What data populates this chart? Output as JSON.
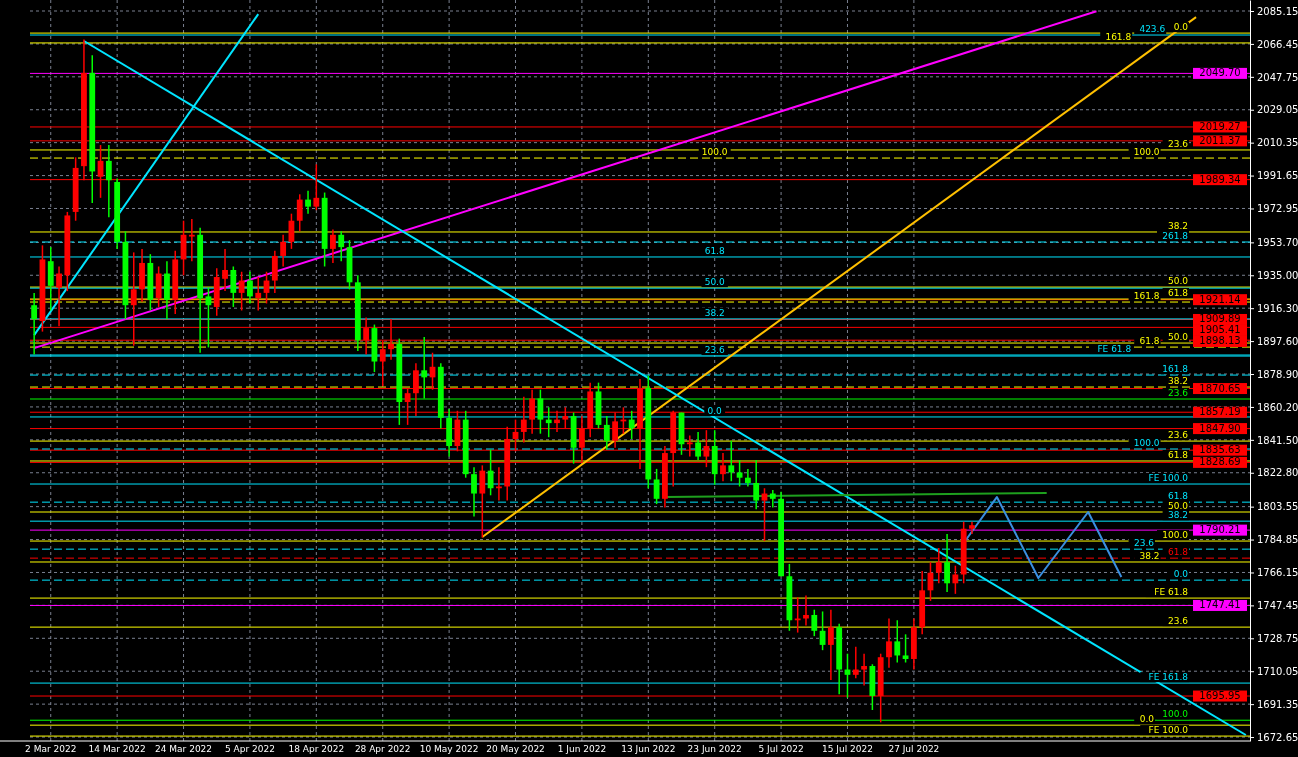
{
  "chart_data": {
    "type": "candlestick",
    "categories": [
      null,
      null,
      "2 Mar 2022",
      null,
      null,
      null,
      null,
      null,
      null,
      null,
      "14 Mar 2022",
      null,
      null,
      null,
      null,
      null,
      null,
      null,
      "24 Mar 2022",
      null,
      null,
      null,
      null,
      null,
      null,
      null,
      "5 Apr 2022",
      null,
      null,
      null,
      null,
      null,
      null,
      null,
      "18 Apr 2022",
      null,
      null,
      null,
      null,
      null,
      null,
      null,
      "28 Apr 2022",
      null,
      null,
      null,
      null,
      null,
      null,
      null,
      "10 May 2022",
      null,
      null,
      null,
      null,
      null,
      null,
      null,
      "20 May 2022",
      null,
      null,
      null,
      null,
      null,
      null,
      null,
      "1 Jun 2022",
      null,
      null,
      null,
      null,
      null,
      null,
      null,
      "13 Jun 2022",
      null,
      null,
      null,
      null,
      null,
      null,
      null,
      "23 Jun 2022",
      null,
      null,
      null,
      null,
      null,
      null,
      null,
      "5 Jul 2022",
      null,
      null,
      null,
      null,
      null,
      null,
      null,
      "15 Jul 2022",
      null,
      null,
      null,
      null,
      null,
      null,
      null,
      "27 Jul 2022",
      null,
      null,
      null,
      null,
      null,
      null,
      null,
      null,
      null,
      null,
      null,
      null,
      null,
      null,
      null,
      null,
      null,
      null,
      null,
      null,
      null,
      null,
      null,
      null,
      null,
      null,
      null,
      null,
      null,
      null,
      null,
      null,
      null,
      null,
      null,
      null,
      null,
      null,
      null,
      null
    ],
    "ohlc": [
      [
        1918,
        1925,
        1890,
        1910
      ],
      [
        1909,
        1952,
        1903,
        1944
      ],
      [
        1943,
        1951,
        1915,
        1929
      ],
      [
        1928,
        1940,
        1906,
        1936
      ],
      [
        1935,
        1971,
        1926,
        1969
      ],
      [
        1971,
        2002,
        1966,
        1996
      ],
      [
        1997,
        2069,
        1989,
        2050
      ],
      [
        2050,
        2060,
        1976,
        1994
      ],
      [
        1991,
        2009,
        1979,
        2000
      ],
      [
        2000,
        2009,
        1968,
        1989
      ],
      [
        1988,
        1990,
        1950,
        1954
      ],
      [
        1954,
        1960,
        1910,
        1918
      ],
      [
        1918,
        1948,
        1895,
        1927
      ],
      [
        1927,
        1950,
        1920,
        1942
      ],
      [
        1942,
        1947,
        1915,
        1921
      ],
      [
        1922,
        1940,
        1917,
        1936
      ],
      [
        1936,
        1943,
        1910,
        1921
      ],
      [
        1921,
        1949,
        1913,
        1944
      ],
      [
        1944,
        1966,
        1935,
        1958
      ],
      [
        1957,
        1967,
        1943,
        1958
      ],
      [
        1958,
        1962,
        1891,
        1922
      ],
      [
        1923,
        1928,
        1894,
        1918
      ],
      [
        1917,
        1939,
        1912,
        1934
      ],
      [
        1933,
        1950,
        1926,
        1938
      ],
      [
        1938,
        1940,
        1917,
        1925
      ],
      [
        1925,
        1937,
        1915,
        1932
      ],
      [
        1932,
        1937,
        1919,
        1923
      ],
      [
        1922,
        1934,
        1915,
        1925
      ],
      [
        1925,
        1937,
        1919,
        1932
      ],
      [
        1932,
        1949,
        1925,
        1946
      ],
      [
        1946,
        1958,
        1940,
        1954
      ],
      [
        1954,
        1970,
        1950,
        1966
      ],
      [
        1966,
        1981,
        1960,
        1978
      ],
      [
        1978,
        1983,
        1970,
        1974
      ],
      [
        1974,
        1998,
        1972,
        1979
      ],
      [
        1979,
        1982,
        1940,
        1950
      ],
      [
        1950,
        1961,
        1942,
        1958
      ],
      [
        1958,
        1960,
        1943,
        1951
      ],
      [
        1951,
        1955,
        1927,
        1931
      ],
      [
        1931,
        1935,
        1892,
        1898
      ],
      [
        1898,
        1911,
        1890,
        1905
      ],
      [
        1905,
        1907,
        1880,
        1886
      ],
      [
        1886,
        1898,
        1872,
        1893
      ],
      [
        1893,
        1910,
        1887,
        1896
      ],
      [
        1896,
        1899,
        1850,
        1863
      ],
      [
        1863,
        1871,
        1850,
        1868
      ],
      [
        1868,
        1885,
        1855,
        1881
      ],
      [
        1881,
        1900,
        1865,
        1877
      ],
      [
        1877,
        1891,
        1870,
        1883
      ],
      [
        1883,
        1885,
        1848,
        1854
      ],
      [
        1854,
        1859,
        1832,
        1838
      ],
      [
        1838,
        1858,
        1835,
        1853
      ],
      [
        1853,
        1858,
        1820,
        1822
      ],
      [
        1822,
        1826,
        1798,
        1811
      ],
      [
        1811,
        1827,
        1786,
        1824
      ],
      [
        1824,
        1836,
        1810,
        1814
      ],
      [
        1814,
        1826,
        1807,
        1815
      ],
      [
        1815,
        1849,
        1807,
        1842
      ],
      [
        1842,
        1853,
        1835,
        1846
      ],
      [
        1846,
        1866,
        1840,
        1853
      ],
      [
        1853,
        1870,
        1845,
        1865
      ],
      [
        1865,
        1870,
        1845,
        1853
      ],
      [
        1853,
        1860,
        1843,
        1851
      ],
      [
        1851,
        1858,
        1846,
        1853
      ],
      [
        1853,
        1860,
        1848,
        1855
      ],
      [
        1855,
        1857,
        1828,
        1837
      ],
      [
        1837,
        1855,
        1829,
        1848
      ],
      [
        1848,
        1874,
        1843,
        1869
      ],
      [
        1869,
        1874,
        1848,
        1850
      ],
      [
        1850,
        1855,
        1836,
        1841
      ],
      [
        1841,
        1857,
        1837,
        1852
      ],
      [
        1852,
        1860,
        1845,
        1853
      ],
      [
        1853,
        1858,
        1842,
        1848
      ],
      [
        1848,
        1876,
        1825,
        1871
      ],
      [
        1871,
        1878,
        1814,
        1819
      ],
      [
        1819,
        1825,
        1805,
        1808
      ],
      [
        1808,
        1838,
        1803,
        1834
      ],
      [
        1834,
        1858,
        1815,
        1857
      ],
      [
        1857,
        1857,
        1833,
        1839
      ],
      [
        1839,
        1844,
        1832,
        1840
      ],
      [
        1840,
        1846,
        1830,
        1832
      ],
      [
        1832,
        1847,
        1826,
        1838
      ],
      [
        1838,
        1847,
        1816,
        1822
      ],
      [
        1822,
        1834,
        1818,
        1827
      ],
      [
        1827,
        1841,
        1818,
        1823
      ],
      [
        1823,
        1830,
        1815,
        1820
      ],
      [
        1820,
        1825,
        1815,
        1817
      ],
      [
        1817,
        1830,
        1802,
        1807
      ],
      [
        1807,
        1814,
        1784,
        1811
      ],
      [
        1811,
        1813,
        1803,
        1808
      ],
      [
        1808,
        1812,
        1764,
        1764
      ],
      [
        1764,
        1771,
        1733,
        1739
      ],
      [
        1739,
        1752,
        1732,
        1740
      ],
      [
        1740,
        1753,
        1736,
        1742
      ],
      [
        1742,
        1745,
        1730,
        1733
      ],
      [
        1733,
        1744,
        1722,
        1725
      ],
      [
        1725,
        1745,
        1705,
        1735
      ],
      [
        1735,
        1737,
        1697,
        1711
      ],
      [
        1711,
        1720,
        1695,
        1708
      ],
      [
        1708,
        1724,
        1706,
        1711
      ],
      [
        1711,
        1720,
        1702,
        1713
      ],
      [
        1713,
        1714,
        1688,
        1696
      ],
      [
        1696,
        1720,
        1681,
        1718
      ],
      [
        1718,
        1740,
        1712,
        1727
      ],
      [
        1727,
        1739,
        1715,
        1719
      ],
      [
        1719,
        1731,
        1715,
        1717
      ],
      [
        1717,
        1740,
        1711,
        1735
      ],
      [
        1735,
        1767,
        1731,
        1756
      ],
      [
        1756,
        1772,
        1750,
        1766
      ],
      [
        1766,
        1780,
        1760,
        1772
      ],
      [
        1772,
        1788,
        1755,
        1760
      ],
      [
        1760,
        1770,
        1754,
        1765
      ],
      [
        1765,
        1795,
        1760,
        1791
      ],
      [
        1791,
        1795,
        1788,
        1793
      ],
      null,
      null,
      null,
      null,
      null,
      null,
      null,
      null,
      null,
      null,
      null,
      null,
      null,
      null,
      null,
      null,
      null,
      null,
      null,
      null,
      null,
      null,
      null,
      null,
      null,
      null,
      null,
      null,
      null,
      null,
      null,
      null,
      null
    ],
    "colors": [
      "#00ff00",
      "#ff0000",
      "#00ff00",
      "#ff0000",
      "#ff0000",
      "#ff0000",
      "#ff0000",
      "#00ff00",
      "#ff0000",
      "#00ff00",
      "#00ff00",
      "#00ff00",
      "#ff0000",
      "#ff0000",
      "#00ff00",
      "#ff0000",
      "#00ff00",
      "#ff0000",
      "#ff0000",
      "#ff0000",
      "#00ff00",
      "#00ff00",
      "#ff0000",
      "#ff0000",
      "#00ff00",
      "#ff0000",
      "#00ff00",
      "#ff0000",
      "#ff0000",
      "#ff0000",
      "#ff0000",
      "#ff0000",
      "#ff0000",
      "#00ff00",
      "#ff0000",
      "#00ff00",
      "#ff0000",
      "#00ff00",
      "#00ff00",
      "#00ff00",
      "#ff0000",
      "#00ff00",
      "#ff0000",
      "#ff0000",
      "#00ff00",
      "#ff0000",
      "#ff0000",
      "#00ff00",
      "#ff0000",
      "#00ff00",
      "#00ff00",
      "#ff0000",
      "#00ff00",
      "#00ff00",
      "#ff0000",
      "#00ff00",
      "#ff0000",
      "#ff0000",
      "#ff0000",
      "#ff0000",
      "#ff0000",
      "#00ff00",
      "#00ff00",
      "#ff0000",
      "#ff0000",
      "#00ff00",
      "#ff0000",
      "#ff0000",
      "#00ff00",
      "#00ff00",
      "#ff0000",
      "#ff0000",
      "#00ff00",
      "#ff0000",
      "#00ff00",
      "#00ff00",
      "#ff0000",
      "#ff0000",
      "#00ff00",
      "#ff0000",
      "#00ff00",
      "#ff0000",
      "#00ff00",
      "#ff0000",
      "#00ff00",
      "#00ff00",
      "#00ff00",
      "#00ff00",
      "#ff0000",
      "#00ff00",
      "#00ff00",
      "#00ff00",
      "#ff0000",
      "#ff0000",
      "#00ff00",
      "#00ff00",
      "#ff0000",
      "#00ff00",
      "#00ff00",
      "#ff0000",
      "#ff0000",
      "#00ff00",
      "#ff0000",
      "#ff0000",
      "#00ff00",
      "#00ff00",
      "#ff0000",
      "#ff0000",
      "#ff0000",
      "#ff0000",
      "#00ff00",
      "#ff0000",
      "#ff0000",
      "#ff0000",
      null,
      null,
      null,
      null,
      null,
      null,
      null,
      null,
      null,
      null,
      null,
      null,
      null,
      null,
      null,
      null,
      null,
      null,
      null,
      null,
      null,
      null,
      null,
      null,
      null,
      null,
      null,
      null,
      null,
      null,
      null,
      null,
      null
    ],
    "series": [
      {
        "type": "line",
        "color": "#ff00ff",
        "values": [
          1893.6,
          null,
          null,
          null,
          null,
          null,
          null,
          null,
          null,
          null,
          null,
          null,
          null,
          null,
          null,
          null,
          null,
          null,
          null,
          null,
          null,
          null,
          null,
          null,
          null,
          null,
          null,
          null,
          null,
          null,
          null,
          null,
          null,
          null,
          null,
          null,
          null,
          null,
          null,
          null,
          null,
          null,
          null,
          null,
          null,
          null,
          null,
          null,
          null,
          null,
          null,
          null,
          null,
          null,
          null,
          null,
          null,
          null,
          null,
          null,
          null,
          null,
          null,
          null,
          null,
          null,
          null,
          null,
          null,
          null,
          null,
          null,
          null,
          null,
          null,
          null,
          null,
          null,
          null,
          null,
          null,
          null,
          null,
          null,
          null,
          null,
          null,
          null,
          null,
          null,
          null,
          null,
          null,
          null,
          null,
          null,
          null,
          null,
          null,
          null,
          null,
          null,
          null,
          null,
          null,
          null,
          null,
          null,
          null,
          null,
          null,
          null,
          null,
          null,
          null,
          null,
          null,
          null,
          null,
          null,
          null,
          null,
          null,
          null,
          null,
          null,
          null,
          null,
          2085.0,
          null,
          null,
          null,
          null,
          null,
          null,
          null,
          null,
          null,
          null,
          null,
          null,
          null,
          null,
          null,
          null,
          null,
          null
        ]
      },
      {
        "type": "line",
        "color": "#ffc000",
        "values": [
          null,
          null,
          null,
          null,
          null,
          null,
          null,
          null,
          null,
          null,
          null,
          null,
          null,
          null,
          null,
          null,
          null,
          null,
          null,
          null,
          null,
          null,
          null,
          null,
          null,
          null,
          null,
          null,
          null,
          null,
          null,
          null,
          null,
          null,
          null,
          null,
          null,
          null,
          null,
          null,
          null,
          null,
          null,
          null,
          null,
          null,
          null,
          null,
          null,
          null,
          null,
          null,
          null,
          null,
          1786.3,
          null,
          null,
          null,
          null,
          null,
          null,
          null,
          null,
          null,
          null,
          null,
          null,
          null,
          null,
          null,
          null,
          null,
          null,
          null,
          null,
          null,
          null,
          null,
          null,
          null,
          null,
          null,
          null,
          null,
          null,
          null,
          null,
          null,
          null,
          null,
          null,
          null,
          null,
          null,
          null,
          null,
          null,
          null,
          null,
          null,
          null,
          null,
          null,
          null,
          null,
          null,
          null,
          null,
          null,
          null,
          null,
          null,
          null,
          null,
          null,
          null,
          null,
          null,
          null,
          null,
          null,
          null,
          null,
          null,
          null,
          null,
          null,
          null,
          null,
          null,
          null,
          null,
          null,
          null,
          null,
          null,
          null,
          null,
          null,
          null,
          2081.7,
          null,
          null,
          null,
          null,
          null,
          null
        ]
      },
      {
        "type": "line",
        "color": "#00e5ff",
        "values": [
          null,
          null,
          null,
          null,
          null,
          null,
          2068.1,
          null,
          null,
          null,
          null,
          null,
          null,
          null,
          null,
          null,
          null,
          null,
          null,
          null,
          null,
          null,
          null,
          null,
          null,
          null,
          null,
          null,
          null,
          null,
          null,
          null,
          null,
          null,
          null,
          null,
          null,
          null,
          null,
          null,
          null,
          null,
          null,
          null,
          null,
          null,
          null,
          null,
          null,
          null,
          null,
          null,
          null,
          null,
          null,
          null,
          null,
          null,
          null,
          null,
          null,
          null,
          null,
          null,
          null,
          null,
          null,
          null,
          null,
          null,
          null,
          null,
          null,
          null,
          null,
          null,
          null,
          null,
          null,
          null,
          null,
          null,
          null,
          null,
          null,
          null,
          null,
          null,
          null,
          null,
          null,
          null,
          null,
          null,
          null,
          null,
          null,
          null,
          null,
          null,
          null,
          null,
          null,
          null,
          null,
          null,
          null,
          null,
          null,
          null,
          null,
          null,
          null,
          null,
          null,
          null,
          null,
          null,
          null,
          null,
          null,
          null,
          null,
          null,
          null,
          null,
          null,
          null,
          null,
          null,
          null,
          null,
          null,
          null,
          null,
          null,
          null,
          null,
          null,
          null,
          null,
          null,
          null,
          null,
          null,
          null,
          1673.8
        ]
      },
      {
        "type": "line",
        "color": "#00e5ff",
        "values": [
          1901.0,
          null,
          null,
          null,
          null,
          null,
          null,
          null,
          null,
          null,
          null,
          null,
          null,
          null,
          null,
          null,
          null,
          null,
          null,
          null,
          null,
          null,
          null,
          null,
          null,
          null,
          null,
          2083.4,
          null,
          null,
          null,
          null,
          null,
          null,
          null,
          null,
          null,
          null,
          null,
          null,
          null,
          null,
          null,
          null,
          null,
          null,
          null,
          null,
          null,
          null,
          null,
          null,
          null,
          null,
          null,
          null,
          null,
          null,
          null,
          null,
          null,
          null,
          null,
          null,
          null,
          null,
          null,
          null,
          null,
          null,
          null,
          null,
          null,
          null,
          null,
          null,
          null,
          null,
          null,
          null,
          null,
          null,
          null,
          null,
          null,
          null,
          null,
          null,
          null,
          null,
          null,
          null,
          null,
          null,
          null,
          null,
          null,
          null,
          null,
          null,
          null,
          null,
          null,
          null,
          null,
          null,
          null,
          null,
          null,
          null,
          null,
          null,
          null,
          null,
          null,
          null,
          null,
          null,
          null,
          null,
          null,
          null,
          null,
          null,
          null,
          null,
          null,
          null,
          null,
          null,
          null,
          null,
          null,
          null,
          null,
          null,
          null,
          null,
          null,
          null,
          null,
          null,
          null,
          null,
          null,
          null,
          null
        ]
      },
      {
        "type": "line",
        "color": "#3a8fe0",
        "values": [
          null,
          null,
          null,
          null,
          null,
          null,
          null,
          null,
          null,
          null,
          null,
          null,
          null,
          null,
          null,
          null,
          null,
          null,
          null,
          null,
          null,
          null,
          null,
          null,
          null,
          null,
          null,
          null,
          null,
          null,
          null,
          null,
          null,
          null,
          null,
          null,
          null,
          null,
          null,
          null,
          null,
          null,
          null,
          null,
          null,
          null,
          null,
          null,
          null,
          null,
          null,
          null,
          null,
          null,
          null,
          null,
          null,
          null,
          null,
          null,
          null,
          null,
          null,
          null,
          null,
          null,
          null,
          null,
          null,
          null,
          null,
          null,
          null,
          null,
          null,
          null,
          null,
          null,
          null,
          null,
          null,
          null,
          null,
          null,
          null,
          null,
          null,
          null,
          null,
          null,
          null,
          null,
          null,
          null,
          null,
          null,
          null,
          null,
          null,
          null,
          null,
          null,
          null,
          null,
          null,
          null,
          null,
          null,
          null,
          null,
          null,
          null,
          1782.9,
          null,
          null,
          null,
          1809.0,
          null,
          null,
          null,
          null,
          1763.0,
          null,
          null,
          null,
          null,
          null,
          1800.5,
          null,
          null,
          null,
          1763.6,
          null,
          null,
          null,
          null,
          null,
          null,
          null,
          null,
          null,
          null,
          null,
          null,
          null,
          null,
          null
        ]
      },
      {
        "type": "line",
        "color": "#1ea01e",
        "values": [
          null,
          null,
          null,
          null,
          null,
          null,
          null,
          null,
          null,
          null,
          null,
          null,
          null,
          null,
          null,
          null,
          null,
          null,
          null,
          null,
          null,
          null,
          null,
          null,
          null,
          null,
          null,
          null,
          null,
          null,
          null,
          null,
          null,
          null,
          null,
          null,
          null,
          null,
          null,
          null,
          null,
          null,
          null,
          null,
          null,
          null,
          null,
          null,
          null,
          null,
          null,
          null,
          null,
          null,
          null,
          null,
          null,
          null,
          null,
          null,
          null,
          null,
          null,
          null,
          null,
          null,
          null,
          null,
          null,
          null,
          null,
          null,
          null,
          null,
          null,
          null,
          1809.0,
          null,
          null,
          null,
          null,
          null,
          null,
          null,
          null,
          null,
          null,
          null,
          null,
          null,
          null,
          null,
          null,
          null,
          null,
          null,
          null,
          null,
          null,
          null,
          null,
          null,
          null,
          null,
          null,
          null,
          null,
          null,
          null,
          null,
          null,
          null,
          null,
          null,
          null,
          null,
          null,
          null,
          null,
          null,
          null,
          null,
          1811.3,
          null,
          null,
          null,
          null,
          null,
          null,
          null,
          null,
          null,
          null,
          null,
          null,
          null,
          null,
          null,
          null,
          null,
          null,
          null,
          null,
          null,
          null,
          null,
          null
        ]
      }
    ],
    "ylim": [
      1670.4,
      2091.4
    ],
    "yticks": [
      {
        "value": 2085.15,
        "label": "2085.15"
      },
      {
        "value": 2066.45,
        "label": "2066.45"
      },
      {
        "value": 2047.75,
        "label": "2047.75"
      },
      {
        "value": 2029.05,
        "label": "2029.05"
      },
      {
        "value": 2010.35,
        "label": "2010.35"
      },
      {
        "value": 1991.65,
        "label": "1991.65"
      },
      {
        "value": 1972.95,
        "label": "1972.95"
      },
      {
        "value": 1953.7,
        "label": "1953.70"
      },
      {
        "value": 1935,
        "label": "1935.00"
      },
      {
        "value": 1916.3,
        "label": "1916.30"
      },
      {
        "value": 1897.6,
        "label": "1897.60"
      },
      {
        "value": 1878.9,
        "label": "1878.90"
      },
      {
        "value": 1860.2,
        "label": "1860.20"
      },
      {
        "value": 1841.5,
        "label": "1841.50"
      },
      {
        "value": 1822.8,
        "label": "1822.80"
      },
      {
        "value": 1803.55,
        "label": "1803.55"
      },
      {
        "value": 1784.85,
        "label": "1784.85"
      },
      {
        "value": 1766.15,
        "label": "1766.15"
      },
      {
        "value": 1747.45,
        "label": "1747.45"
      },
      {
        "value": 1728.75,
        "label": "1728.75"
      },
      {
        "value": 1710.05,
        "label": "1710.05"
      },
      {
        "value": 1691.35,
        "label": "1691.35"
      },
      {
        "value": 1672.65,
        "label": "1672.65"
      }
    ],
    "grid": true,
    "ref_lines": [
      {
        "axis": "y",
        "value": 2049.7,
        "label": "2049.70",
        "color": "#ff00ff"
      },
      {
        "axis": "y",
        "value": 2019.27,
        "label": "2019.27",
        "color": "#ff0000"
      },
      {
        "axis": "y",
        "value": 2011.37,
        "label": "2011.37",
        "color": "#ff0000"
      },
      {
        "axis": "y",
        "value": 1989.34,
        "label": "1989.34",
        "color": "#ff0000"
      },
      {
        "axis": "y",
        "value": 1921.14,
        "label": "1921.14",
        "color": "#ff0000"
      },
      {
        "axis": "y",
        "value": 1909.89,
        "label": "1909.89",
        "color": "#ff0000"
      },
      {
        "axis": "y",
        "value": 1905.41,
        "label": "1905.41",
        "color": "#ff0000"
      },
      {
        "axis": "y",
        "value": 1898.13,
        "label": "1898.13",
        "color": "#ff0000"
      },
      {
        "axis": "y",
        "value": 1870.65,
        "label": "1870.65",
        "color": "#ff0000"
      },
      {
        "axis": "y",
        "value": 1857.19,
        "label": "1857.19",
        "color": "#ff0000"
      },
      {
        "axis": "y",
        "value": 1847.9,
        "label": "1847.90",
        "color": "#ff0000"
      },
      {
        "axis": "y",
        "value": 1835.63,
        "label": "1835.63",
        "color": "#ff0000"
      },
      {
        "axis": "y",
        "value": 1828.69,
        "label": "1828.69",
        "color": "#ff0000"
      },
      {
        "axis": "y",
        "value": 1790.21,
        "label": "1790.21",
        "color": "#ff00ff"
      },
      {
        "axis": "y",
        "value": 1747.41,
        "label": "1747.41",
        "color": "#ff00ff"
      },
      {
        "axis": "y",
        "value": 1695.95,
        "label": "1695.95",
        "color": "#ff0000"
      },
      {
        "axis": "y",
        "value": 2072.6,
        "color": "#ffff00"
      },
      {
        "axis": "y",
        "value": 2071.5,
        "color": "#00e5ff"
      },
      {
        "axis": "y",
        "value": 2067.0,
        "color": "#ffff00"
      },
      {
        "axis": "y",
        "value": 2006.2,
        "color": "#ffff00"
      },
      {
        "axis": "y",
        "value": 2001.6,
        "color": "#ffff00",
        "line_style": "dashed"
      },
      {
        "axis": "y",
        "value": 1959.6,
        "color": "#ffff00"
      },
      {
        "axis": "y",
        "value": 1953.9,
        "color": "#00e5ff",
        "line_style": "dashed"
      },
      {
        "axis": "y",
        "value": 1928.3,
        "color": "#ffff00"
      },
      {
        "axis": "y",
        "value": 1921.5,
        "color": "#ffff00"
      },
      {
        "axis": "y",
        "value": 1919.8,
        "color": "#ffff00",
        "line_style": "dashed"
      },
      {
        "axis": "y",
        "value": 1896.5,
        "color": "#ffff00"
      },
      {
        "axis": "y",
        "value": 1894.2,
        "color": "#ffff00",
        "line_style": "dashed"
      },
      {
        "axis": "y",
        "value": 1889.7,
        "color": "#00e5ff"
      },
      {
        "axis": "y",
        "value": 1878.3,
        "color": "#00e5ff",
        "line_style": "dashed"
      },
      {
        "axis": "y",
        "value": 1871.5,
        "color": "#ffff00",
        "line_style": "dashed"
      },
      {
        "axis": "y",
        "value": 1864.7,
        "color": "#00ff00"
      },
      {
        "axis": "y",
        "value": 1840.8,
        "color": "#ffff00"
      },
      {
        "axis": "y",
        "value": 1836.3,
        "color": "#00e5ff",
        "line_style": "dashed"
      },
      {
        "axis": "y",
        "value": 1829.5,
        "color": "#ffff00"
      },
      {
        "axis": "y",
        "value": 1816.4,
        "color": "#00e5ff"
      },
      {
        "axis": "y",
        "value": 1806.1,
        "color": "#00e5ff",
        "line_style": "dashed"
      },
      {
        "axis": "y",
        "value": 1800.5,
        "color": "#ffff00"
      },
      {
        "axis": "y",
        "value": 1795.3,
        "color": "#00e5ff"
      },
      {
        "axis": "y",
        "value": 1784.0,
        "color": "#ffff00"
      },
      {
        "axis": "y",
        "value": 1779.4,
        "color": "#00e5ff",
        "line_style": "dashed"
      },
      {
        "axis": "y",
        "value": 1774.3,
        "color": "#ff0000",
        "line_style": "dashed"
      },
      {
        "axis": "y",
        "value": 1772.1,
        "color": "#ffff00"
      },
      {
        "axis": "y",
        "value": 1761.8,
        "color": "#00e5ff",
        "line_style": "dashed"
      },
      {
        "axis": "y",
        "value": 1751.6,
        "color": "#ffff00"
      },
      {
        "axis": "y",
        "value": 1735.1,
        "color": "#ffff00"
      },
      {
        "axis": "y",
        "value": 1703.3,
        "color": "#00e5ff"
      },
      {
        "axis": "y",
        "value": 1682.2,
        "color": "#00ff00"
      },
      {
        "axis": "y",
        "value": 1679.4,
        "color": "#ffff00"
      },
      {
        "axis": "y",
        "value": 1673.2,
        "color": "#ffff00"
      },
      {
        "axis": "y",
        "value": 1945.4,
        "color": "#00e5ff"
      },
      {
        "axis": "y",
        "value": 1927.7,
        "color": "#00e5ff"
      },
      {
        "axis": "y",
        "value": 1910.2,
        "color": "#00e5ff"
      },
      {
        "axis": "y",
        "value": 1889.1,
        "color": "#00e5ff"
      },
      {
        "axis": "y",
        "value": 1854.5,
        "color": "#00e5ff"
      }
    ],
    "annotations": [
      {
        "text": "100.0",
        "x": "23 Jun 2022",
        "y": 2001.6
      },
      {
        "text": "61.8",
        "x": "23 Jun 2022",
        "y": 1945.4
      },
      {
        "text": "50.0",
        "x": "23 Jun 2022",
        "y": 1927.7
      },
      {
        "text": "38.2",
        "x": "23 Jun 2022",
        "y": 1910.2
      },
      {
        "text": "23.6",
        "x": "23 Jun 2022",
        "y": 1889.1
      },
      {
        "text": "0.0",
        "x": "23 Jun 2022",
        "y": 1854.5
      },
      {
        "text": "0.0",
        "y": 2072.6
      },
      {
        "text": "423.6",
        "y": 2071.5
      },
      {
        "text": "161.8",
        "y": 2067.0
      },
      {
        "text": "23.6",
        "y": 2006.2
      },
      {
        "text": "100.0",
        "y": 2001.6
      },
      {
        "text": "38.2",
        "y": 1959.6
      },
      {
        "text": "261.8",
        "y": 1953.9
      },
      {
        "text": "50.0",
        "y": 1928.3
      },
      {
        "text": "61.8",
        "y": 1921.5
      },
      {
        "text": "161.8",
        "y": 1919.8
      },
      {
        "text": "50.0",
        "y": 1896.5
      },
      {
        "text": "61.8",
        "y": 1894.2
      },
      {
        "text": "FE 61.8",
        "y": 1889.7
      },
      {
        "text": "161.8",
        "y": 1878.3
      },
      {
        "text": "38.2",
        "y": 1871.5
      },
      {
        "text": "23.6",
        "y": 1864.7
      },
      {
        "text": "23.6",
        "y": 1840.8
      },
      {
        "text": "100.0",
        "y": 1836.3
      },
      {
        "text": "61.8",
        "y": 1829.5
      },
      {
        "text": "FE 100.0",
        "y": 1816.4
      },
      {
        "text": "61.8",
        "y": 1806.1
      },
      {
        "text": "50.0",
        "y": 1800.5
      },
      {
        "text": "38.2",
        "y": 1795.3
      },
      {
        "text": "100.0",
        "y": 1784.0
      },
      {
        "text": "23.6",
        "y": 1779.4
      },
      {
        "text": "61.8",
        "y": 1774.3
      },
      {
        "text": "38.2",
        "y": 1772.1
      },
      {
        "text": "0.0",
        "y": 1761.8
      },
      {
        "text": "FE 61.8",
        "y": 1751.6
      },
      {
        "text": "23.6",
        "y": 1735.1
      },
      {
        "text": "FE 161.8",
        "y": 1703.3
      },
      {
        "text": "100.0",
        "y": 1682.2
      },
      {
        "text": "0.0",
        "y": 1679.4
      },
      {
        "text": "FE 100.0",
        "y": 1673.2
      }
    ]
  }
}
